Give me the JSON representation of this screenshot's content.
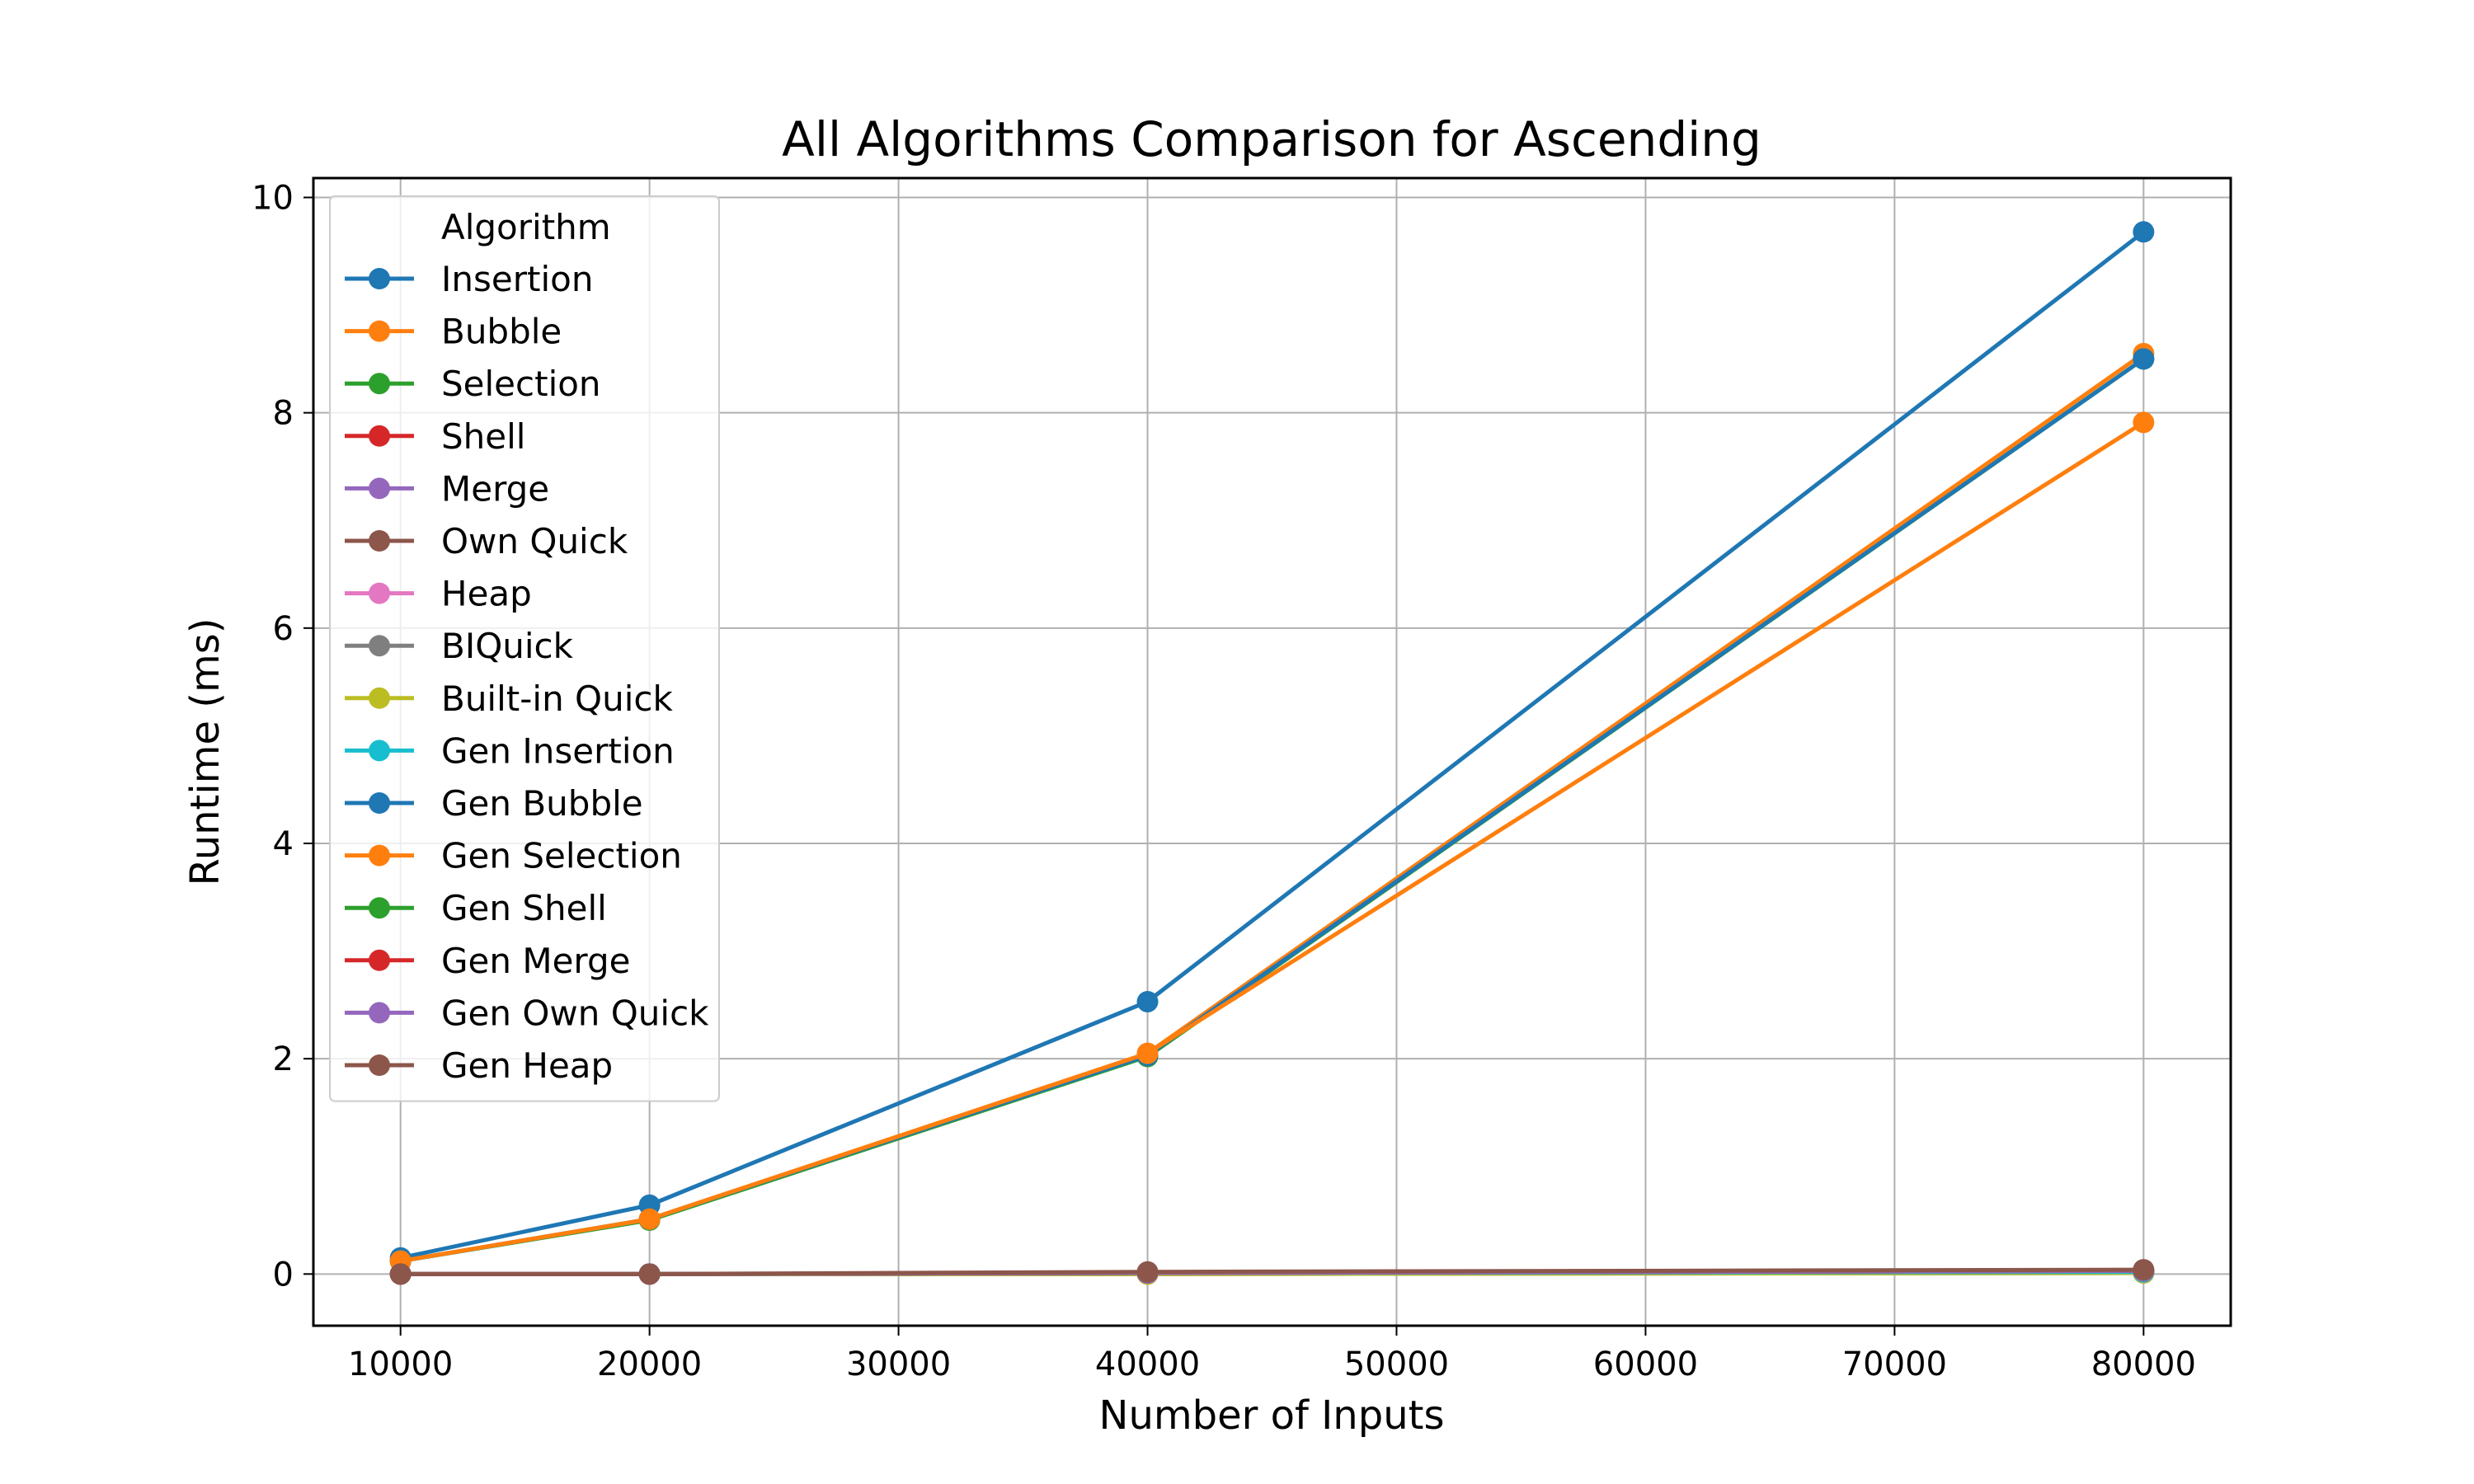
{
  "chart_data": {
    "type": "line",
    "title": "All Algorithms Comparison for Ascending",
    "xlabel": "Number of Inputs",
    "ylabel": "Runtime (ms)",
    "xlim": [
      6500,
      83500
    ],
    "ylim": [
      -0.48,
      10.18
    ],
    "xticks": [
      10000,
      20000,
      30000,
      40000,
      50000,
      60000,
      70000,
      80000
    ],
    "yticks": [
      0,
      2,
      4,
      6,
      8,
      10
    ],
    "grid": true,
    "legend": {
      "title": "Algorithm",
      "placement": "upper-left"
    },
    "x": [
      10000,
      20000,
      40000,
      80000
    ],
    "series": [
      {
        "name": "Insertion",
        "color": "#1f77b4",
        "values": [
          0.15,
          0.64,
          2.53,
          9.68
        ]
      },
      {
        "name": "Bubble",
        "color": "#ff7f0e",
        "values": [
          0.12,
          0.51,
          2.05,
          8.55
        ]
      },
      {
        "name": "Selection",
        "color": "#2ca02c",
        "values": [
          0.12,
          0.5,
          2.02,
          8.5
        ]
      },
      {
        "name": "Shell",
        "color": "#d62728",
        "values": [
          0.0,
          0.0,
          0.01,
          0.02
        ]
      },
      {
        "name": "Merge",
        "color": "#9467bd",
        "values": [
          0.0,
          0.0,
          0.01,
          0.02
        ]
      },
      {
        "name": "Own Quick",
        "color": "#8c564b",
        "values": [
          0.0,
          0.0,
          0.01,
          0.02
        ]
      },
      {
        "name": "Heap",
        "color": "#e377c2",
        "values": [
          0.0,
          0.0,
          0.01,
          0.02
        ]
      },
      {
        "name": "BIQuick",
        "color": "#7f7f7f",
        "values": [
          0.0,
          0.0,
          0.0,
          0.01
        ]
      },
      {
        "name": "Built-in Quick",
        "color": "#bcbd22",
        "values": [
          0.0,
          0.0,
          0.0,
          0.01
        ]
      },
      {
        "name": "Gen Insertion",
        "color": "#17becf",
        "values": [
          0.0,
          0.0,
          0.01,
          0.02
        ]
      },
      {
        "name": "Gen Bubble",
        "color": "#1f77b4",
        "values": [
          0.12,
          0.51,
          2.03,
          8.5
        ]
      },
      {
        "name": "Gen Selection",
        "color": "#ff7f0e",
        "values": [
          0.12,
          0.51,
          2.05,
          7.91
        ]
      },
      {
        "name": "Gen Shell",
        "color": "#2ca02c",
        "values": [
          0.0,
          0.0,
          0.01,
          0.03
        ]
      },
      {
        "name": "Gen Merge",
        "color": "#d62728",
        "values": [
          0.0,
          0.0,
          0.01,
          0.03
        ]
      },
      {
        "name": "Gen Own Quick",
        "color": "#9467bd",
        "values": [
          0.0,
          0.0,
          0.01,
          0.03
        ]
      },
      {
        "name": "Gen Heap",
        "color": "#8c564b",
        "values": [
          0.0,
          0.0,
          0.02,
          0.04
        ]
      }
    ]
  }
}
